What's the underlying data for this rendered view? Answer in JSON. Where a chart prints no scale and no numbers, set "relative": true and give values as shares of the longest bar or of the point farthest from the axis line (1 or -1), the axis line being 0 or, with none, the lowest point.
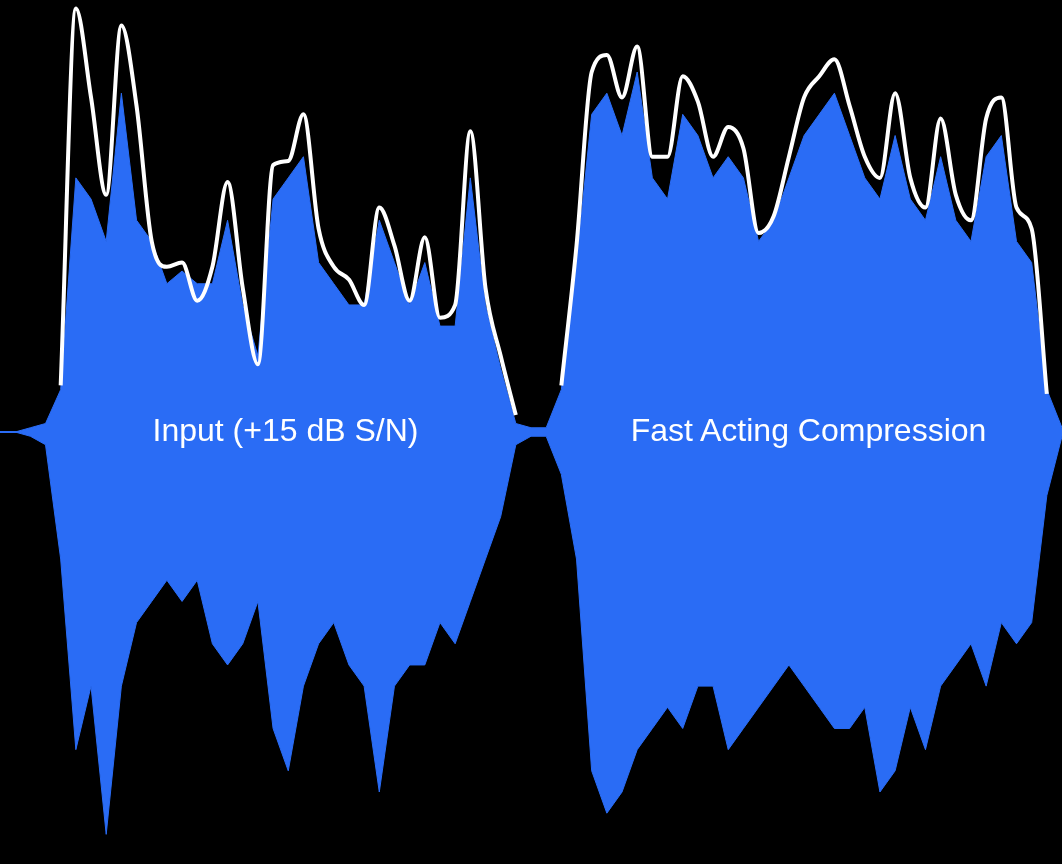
{
  "chart_data": {
    "type": "line",
    "relative": true,
    "categories": [
      null,
      null,
      null,
      null,
      null,
      null,
      null,
      null,
      null,
      null,
      null,
      null,
      null,
      null,
      null,
      null,
      null,
      null,
      null,
      null,
      null,
      null,
      null,
      null,
      null,
      null,
      null,
      null,
      null,
      null,
      null,
      null,
      null,
      null,
      null,
      null,
      null,
      null,
      null,
      null,
      null,
      null,
      null,
      null,
      null,
      null,
      null,
      null,
      null,
      null,
      null,
      null,
      null,
      null,
      null,
      null,
      null,
      null,
      null,
      null,
      null,
      null,
      null,
      null,
      null,
      null,
      null,
      null,
      null,
      null,
      null
    ],
    "series": [
      {
        "type": "area",
        "color": "#2a6cf5",
        "values": [
          0,
          0,
          0.01,
          0.02,
          0.1,
          0.6,
          0.55,
          0.45,
          0.8,
          0.5,
          0.45,
          0.35,
          0.38,
          0.35,
          0.35,
          0.5,
          0.3,
          0.18,
          0.55,
          0.6,
          0.65,
          0.4,
          0.35,
          0.3,
          0.3,
          0.5,
          0.4,
          0.3,
          0.4,
          0.25,
          0.25,
          0.6,
          0.3,
          0.15,
          0.02,
          0.01,
          0.01,
          0.1,
          0.4,
          0.75,
          0.8,
          0.7,
          0.85,
          0.6,
          0.55,
          0.75,
          0.7,
          0.6,
          0.65,
          0.6,
          0.45,
          0.5,
          0.6,
          0.7,
          0.75,
          0.8,
          0.7,
          0.6,
          0.55,
          0.7,
          0.55,
          0.5,
          0.65,
          0.5,
          0.45,
          0.65,
          0.7,
          0.45,
          0.4,
          0.1,
          0.01
        ]
      },
      {
        "type": "area",
        "color": "#2a6cf5",
        "values": [
          0,
          0,
          -0.01,
          -0.03,
          -0.3,
          -0.75,
          -0.6,
          -0.95,
          -0.6,
          -0.45,
          -0.4,
          -0.35,
          -0.4,
          -0.35,
          -0.5,
          -0.55,
          -0.5,
          -0.4,
          -0.7,
          -0.8,
          -0.6,
          -0.5,
          -0.45,
          -0.55,
          -0.6,
          -0.85,
          -0.6,
          -0.55,
          -0.55,
          -0.45,
          -0.5,
          -0.4,
          -0.3,
          -0.2,
          -0.03,
          -0.01,
          -0.01,
          -0.1,
          -0.3,
          -0.8,
          -0.9,
          -0.85,
          -0.75,
          -0.7,
          -0.65,
          -0.7,
          -0.6,
          -0.6,
          -0.75,
          -0.7,
          -0.65,
          -0.6,
          -0.55,
          -0.6,
          -0.65,
          -0.7,
          -0.7,
          -0.65,
          -0.85,
          -0.8,
          -0.65,
          -0.75,
          -0.6,
          -0.55,
          -0.5,
          -0.6,
          -0.45,
          -0.5,
          -0.45,
          -0.15,
          -0.01
        ]
      },
      {
        "color": "#ffffff",
        "values": [
          null,
          null,
          null,
          null,
          0.11,
          1.0,
          0.79,
          0.56,
          0.96,
          0.77,
          0.45,
          0.39,
          0.4,
          0.31,
          0.39,
          0.59,
          0.34,
          0.16,
          0.63,
          0.64,
          0.75,
          0.48,
          0.39,
          0.36,
          0.3,
          0.53,
          0.44,
          0.31,
          0.46,
          0.27,
          0.3,
          0.71,
          0.34,
          0.18,
          0.04,
          null,
          null,
          0.11,
          0.44,
          0.85,
          0.89,
          0.79,
          0.91,
          0.65,
          0.65,
          0.84,
          0.78,
          0.65,
          0.72,
          0.67,
          0.47,
          0.51,
          0.65,
          0.79,
          0.84,
          0.88,
          0.77,
          0.65,
          0.6,
          0.8,
          0.6,
          0.53,
          0.74,
          0.56,
          0.5,
          0.74,
          0.79,
          0.53,
          0.48,
          0.09,
          null
        ]
      }
    ],
    "annotations": [
      "Input (+15 dB S/N)",
      "Fast Acting Compression"
    ]
  }
}
